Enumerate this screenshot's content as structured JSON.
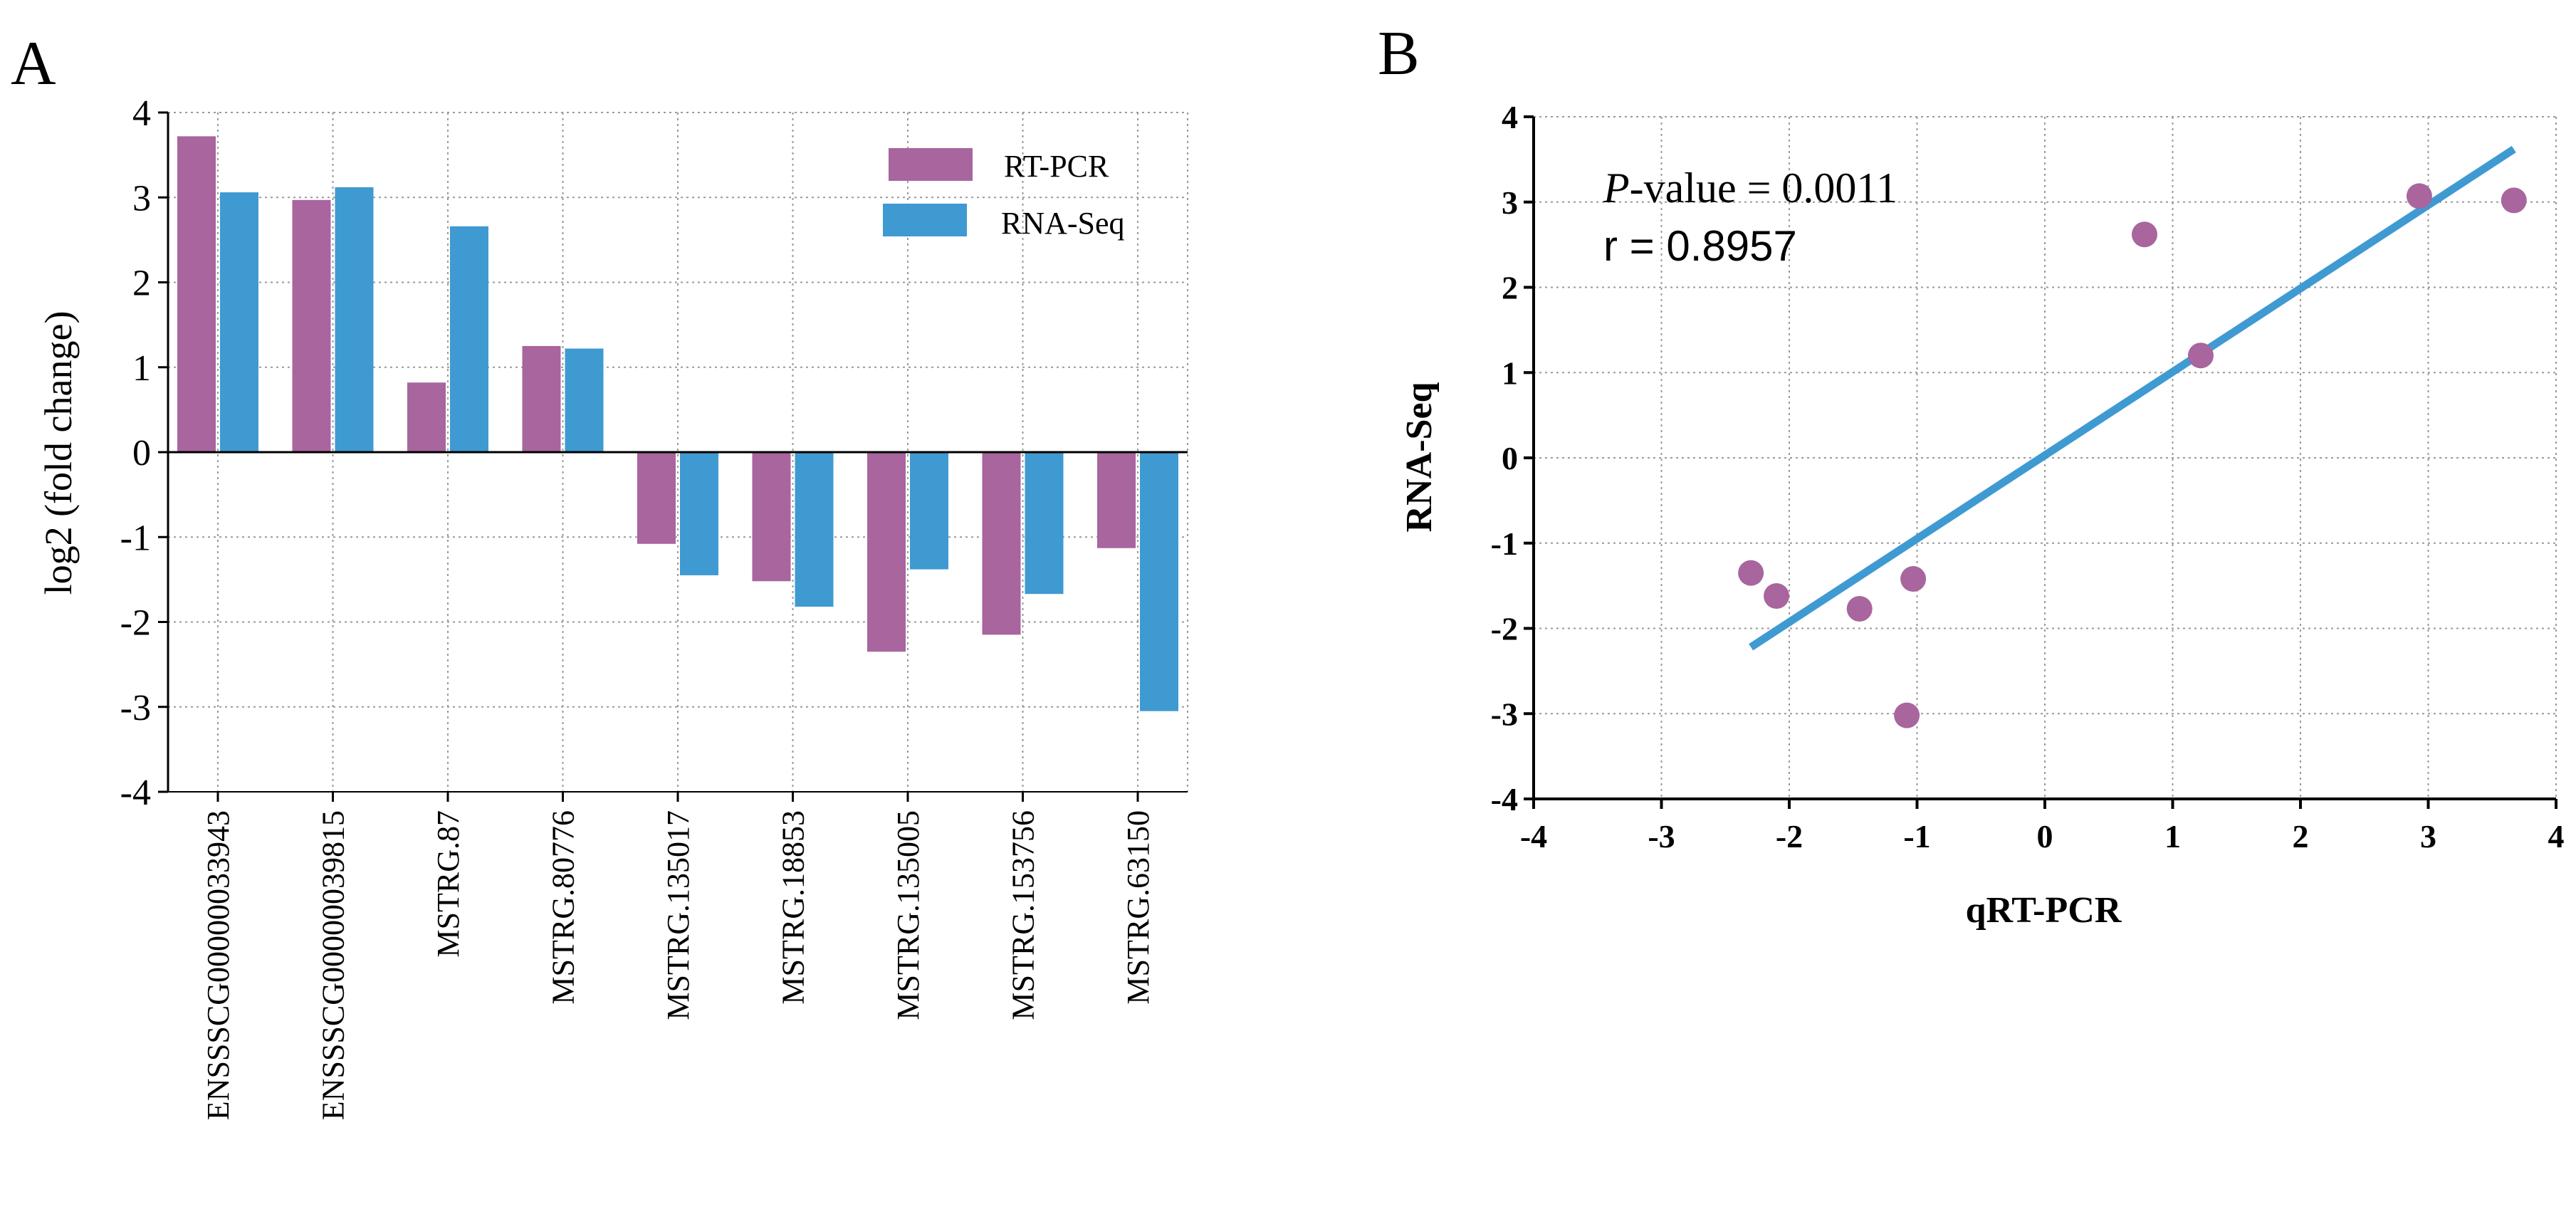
{
  "colors": {
    "rt_pcr": "#A8659E",
    "rna_seq": "#3F9AD2",
    "axis": "#000000",
    "grid": "#9a9a9a",
    "fit_line": "#3F9AD2",
    "points": "#A8659E"
  },
  "chart_data": [
    {
      "panel_label": "A",
      "type": "bar",
      "title": "",
      "xlabel": "",
      "ylabel": "log2 (fold change)",
      "ylim": [
        -4,
        4
      ],
      "yticks": [
        4,
        3,
        2,
        1,
        0,
        -1,
        -2,
        -3,
        -4
      ],
      "ytick_labels": [
        "4",
        "3",
        "2",
        "1",
        "0",
        "-1",
        "-2",
        "-3",
        "-4"
      ],
      "grid": true,
      "legend_position": "top-right",
      "categories": [
        "ENSSSCG00000033943",
        "ENSSSCG00000039815",
        "MSTRG.87",
        "MSTRG.80776",
        "MSTRG.135017",
        "MSTRG.18853",
        "MSTRG.135005",
        "MSTRG.153756",
        "MSTRG.63150"
      ],
      "series": [
        {
          "name": "RT-PCR",
          "values": [
            3.72,
            2.97,
            0.82,
            1.25,
            -1.08,
            -1.52,
            -2.35,
            -2.15,
            -1.13
          ]
        },
        {
          "name": "RNA-Seq",
          "values": [
            3.06,
            3.12,
            2.66,
            1.22,
            -1.45,
            -1.82,
            -1.38,
            -1.67,
            -3.05
          ]
        }
      ]
    },
    {
      "panel_label": "B",
      "type": "scatter",
      "title": "",
      "xlabel": "qRT-PCR",
      "ylabel": "RNA-Seq",
      "xlim": [
        -4,
        4
      ],
      "ylim": [
        -4,
        4
      ],
      "ticks": [
        -4,
        -3,
        -2,
        -1,
        0,
        1,
        2,
        3,
        4
      ],
      "tick_labels": [
        "-4",
        "-3",
        "-2",
        "-1",
        "0",
        "1",
        "2",
        "3",
        "4"
      ],
      "grid": true,
      "points": [
        {
          "x": -2.3,
          "y": -1.35
        },
        {
          "x": -2.1,
          "y": -1.62
        },
        {
          "x": -1.45,
          "y": -1.77
        },
        {
          "x": -1.03,
          "y": -1.42
        },
        {
          "x": -1.08,
          "y": -3.02
        },
        {
          "x": 0.78,
          "y": 2.62
        },
        {
          "x": 1.22,
          "y": 1.2
        },
        {
          "x": 2.93,
          "y": 3.07
        },
        {
          "x": 3.67,
          "y": 3.02
        }
      ],
      "fit_line": {
        "x": [
          -2.3,
          3.67
        ],
        "y": [
          -2.22,
          3.62
        ]
      },
      "annotations": {
        "p_italic": "P",
        "p_rest": "-value = 0.0011",
        "r_text": "r = 0.8957"
      }
    }
  ]
}
